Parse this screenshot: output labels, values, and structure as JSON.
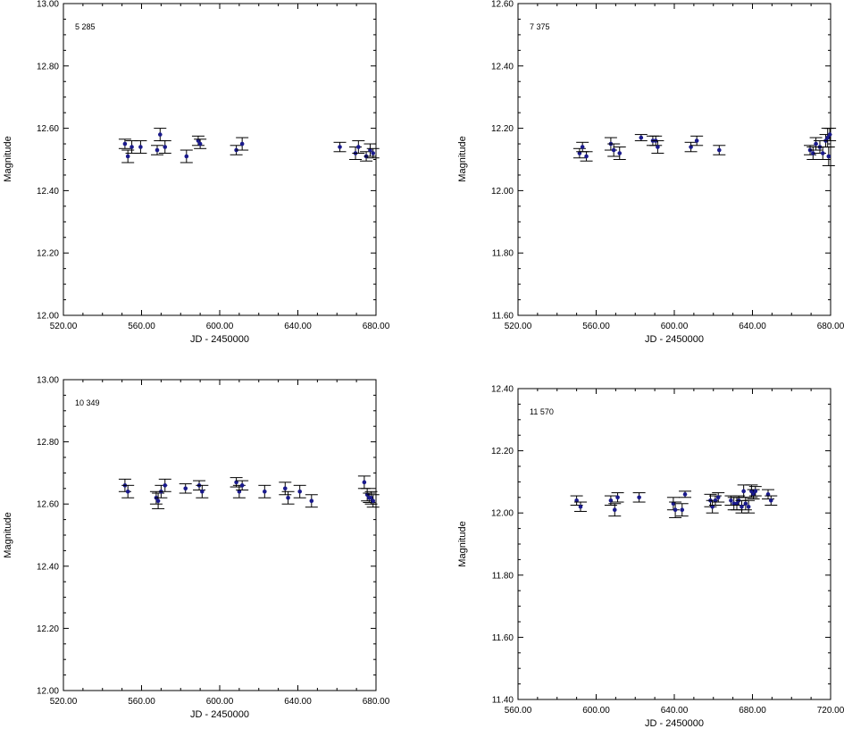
{
  "chart_data": [
    {
      "type": "scatter",
      "label": "5    285",
      "xlabel": "JD - 2450000",
      "ylabel": "Magnitude",
      "xlim": [
        520,
        680
      ],
      "ylim": [
        12.0,
        13.0
      ],
      "xticks": [
        "520.00",
        "560.00",
        "600.00",
        "640.00",
        "680.00"
      ],
      "yticks": [
        "12.00",
        "12.20",
        "12.40",
        "12.60",
        "12.80",
        "13.00"
      ],
      "points": [
        {
          "x": 551.5,
          "y": 12.55,
          "err": 0.015
        },
        {
          "x": 553.0,
          "y": 12.51,
          "err": 0.02
        },
        {
          "x": 555.0,
          "y": 12.54,
          "err": 0.02
        },
        {
          "x": 559.5,
          "y": 12.54,
          "err": 0.02
        },
        {
          "x": 568.0,
          "y": 12.53,
          "err": 0.015
        },
        {
          "x": 569.5,
          "y": 12.58,
          "err": 0.02
        },
        {
          "x": 572.0,
          "y": 12.54,
          "err": 0.02
        },
        {
          "x": 583.0,
          "y": 12.51,
          "err": 0.02
        },
        {
          "x": 589.0,
          "y": 12.56,
          "err": 0.015
        },
        {
          "x": 590.0,
          "y": 12.55,
          "err": 0.015
        },
        {
          "x": 608.5,
          "y": 12.53,
          "err": 0.015
        },
        {
          "x": 611.5,
          "y": 12.55,
          "err": 0.02
        },
        {
          "x": 661.5,
          "y": 12.54,
          "err": 0.015
        },
        {
          "x": 669.5,
          "y": 12.52,
          "err": 0.02
        },
        {
          "x": 671.0,
          "y": 12.54,
          "err": 0.02
        },
        {
          "x": 675.0,
          "y": 12.51,
          "err": 0.015
        },
        {
          "x": 677.0,
          "y": 12.53,
          "err": 0.02
        },
        {
          "x": 678.5,
          "y": 12.52,
          "err": 0.015
        }
      ]
    },
    {
      "type": "scatter",
      "label": "7    375",
      "xlabel": "JD - 2450000",
      "ylabel": "Magnitude",
      "xlim": [
        520,
        680
      ],
      "ylim": [
        11.6,
        12.6
      ],
      "xticks": [
        "520.00",
        "560.00",
        "600.00",
        "640.00",
        "680.00"
      ],
      "yticks": [
        "11.60",
        "11.80",
        "12.00",
        "12.20",
        "12.40",
        "12.60"
      ],
      "points": [
        {
          "x": 551.5,
          "y": 12.12,
          "err": 0.015
        },
        {
          "x": 553.0,
          "y": 12.14,
          "err": 0.015
        },
        {
          "x": 555.0,
          "y": 12.11,
          "err": 0.015
        },
        {
          "x": 567.5,
          "y": 12.15,
          "err": 0.02
        },
        {
          "x": 569.0,
          "y": 12.13,
          "err": 0.02
        },
        {
          "x": 572.0,
          "y": 12.12,
          "err": 0.02
        },
        {
          "x": 583.0,
          "y": 12.17,
          "err": 0.01
        },
        {
          "x": 589.0,
          "y": 12.16,
          "err": 0.015
        },
        {
          "x": 590.5,
          "y": 12.16,
          "err": 0.015
        },
        {
          "x": 591.5,
          "y": 12.14,
          "err": 0.02
        },
        {
          "x": 608.5,
          "y": 12.14,
          "err": 0.015
        },
        {
          "x": 611.5,
          "y": 12.16,
          "err": 0.015
        },
        {
          "x": 623.0,
          "y": 12.13,
          "err": 0.015
        },
        {
          "x": 669.5,
          "y": 12.13,
          "err": 0.015
        },
        {
          "x": 671.0,
          "y": 12.12,
          "err": 0.02
        },
        {
          "x": 672.5,
          "y": 12.15,
          "err": 0.02
        },
        {
          "x": 674.5,
          "y": 12.14,
          "err": 0.02
        },
        {
          "x": 676.0,
          "y": 12.12,
          "err": 0.02
        },
        {
          "x": 677.5,
          "y": 12.16,
          "err": 0.02
        },
        {
          "x": 678.5,
          "y": 12.17,
          "err": 0.03
        },
        {
          "x": 679.0,
          "y": 12.11,
          "err": 0.03
        },
        {
          "x": 679.6,
          "y": 12.18,
          "err": 0.02
        }
      ]
    },
    {
      "type": "scatter",
      "label": "10    349",
      "xlabel": "JD - 2450000",
      "ylabel": "Magnitude",
      "xlim": [
        520,
        680
      ],
      "ylim": [
        12.0,
        13.0
      ],
      "xticks": [
        "520.00",
        "560.00",
        "600.00",
        "640.00",
        "680.00"
      ],
      "yticks": [
        "12.00",
        "12.20",
        "12.40",
        "12.60",
        "12.80",
        "13.00"
      ],
      "points": [
        {
          "x": 551.5,
          "y": 12.66,
          "err": 0.02
        },
        {
          "x": 553.0,
          "y": 12.64,
          "err": 0.02
        },
        {
          "x": 567.5,
          "y": 12.62,
          "err": 0.02
        },
        {
          "x": 568.5,
          "y": 12.61,
          "err": 0.025
        },
        {
          "x": 570.0,
          "y": 12.64,
          "err": 0.02
        },
        {
          "x": 572.0,
          "y": 12.66,
          "err": 0.02
        },
        {
          "x": 582.5,
          "y": 12.65,
          "err": 0.015
        },
        {
          "x": 589.5,
          "y": 12.66,
          "err": 0.015
        },
        {
          "x": 591.0,
          "y": 12.64,
          "err": 0.02
        },
        {
          "x": 608.5,
          "y": 12.67,
          "err": 0.015
        },
        {
          "x": 610.0,
          "y": 12.64,
          "err": 0.02
        },
        {
          "x": 611.5,
          "y": 12.66,
          "err": 0.015
        },
        {
          "x": 623.0,
          "y": 12.64,
          "err": 0.02
        },
        {
          "x": 633.5,
          "y": 12.65,
          "err": 0.02
        },
        {
          "x": 635.0,
          "y": 12.62,
          "err": 0.02
        },
        {
          "x": 641.0,
          "y": 12.64,
          "err": 0.02
        },
        {
          "x": 647.0,
          "y": 12.61,
          "err": 0.02
        },
        {
          "x": 674.0,
          "y": 12.67,
          "err": 0.02
        },
        {
          "x": 675.5,
          "y": 12.63,
          "err": 0.02
        },
        {
          "x": 676.5,
          "y": 12.62,
          "err": 0.015
        },
        {
          "x": 677.5,
          "y": 12.62,
          "err": 0.02
        },
        {
          "x": 678.5,
          "y": 12.61,
          "err": 0.02
        }
      ]
    },
    {
      "type": "scatter",
      "label": "11    570",
      "xlabel": "JD - 2450000",
      "ylabel": "Magnitude",
      "xlim": [
        560,
        720
      ],
      "ylim": [
        11.4,
        12.4
      ],
      "xticks": [
        "560.00",
        "600.00",
        "640.00",
        "680.00",
        "720.00"
      ],
      "yticks": [
        "11.40",
        "11.60",
        "11.80",
        "12.00",
        "12.20",
        "12.40"
      ],
      "points": [
        {
          "x": 590.0,
          "y": 12.04,
          "err": 0.015
        },
        {
          "x": 592.0,
          "y": 12.02,
          "err": 0.015
        },
        {
          "x": 607.5,
          "y": 12.04,
          "err": 0.015
        },
        {
          "x": 609.5,
          "y": 12.01,
          "err": 0.02
        },
        {
          "x": 611.0,
          "y": 12.05,
          "err": 0.015
        },
        {
          "x": 622.0,
          "y": 12.05,
          "err": 0.015
        },
        {
          "x": 639.5,
          "y": 12.03,
          "err": 0.02
        },
        {
          "x": 640.5,
          "y": 12.01,
          "err": 0.025
        },
        {
          "x": 644.0,
          "y": 12.01,
          "err": 0.02
        },
        {
          "x": 645.5,
          "y": 12.06,
          "err": 0.01
        },
        {
          "x": 658.5,
          "y": 12.04,
          "err": 0.02
        },
        {
          "x": 659.5,
          "y": 12.02,
          "err": 0.02
        },
        {
          "x": 661.0,
          "y": 12.04,
          "err": 0.015
        },
        {
          "x": 662.5,
          "y": 12.05,
          "err": 0.015
        },
        {
          "x": 669.0,
          "y": 12.04,
          "err": 0.015
        },
        {
          "x": 670.5,
          "y": 12.03,
          "err": 0.02
        },
        {
          "x": 672.0,
          "y": 12.03,
          "err": 0.02
        },
        {
          "x": 673.0,
          "y": 12.04,
          "err": 0.015
        },
        {
          "x": 674.5,
          "y": 12.02,
          "err": 0.02
        },
        {
          "x": 675.5,
          "y": 12.07,
          "err": 0.02
        },
        {
          "x": 676.5,
          "y": 12.03,
          "err": 0.02
        },
        {
          "x": 678.0,
          "y": 12.02,
          "err": 0.02
        },
        {
          "x": 679.5,
          "y": 12.07,
          "err": 0.02
        },
        {
          "x": 680.5,
          "y": 12.06,
          "err": 0.015
        },
        {
          "x": 681.5,
          "y": 12.07,
          "err": 0.015
        },
        {
          "x": 688.0,
          "y": 12.06,
          "err": 0.015
        },
        {
          "x": 689.5,
          "y": 12.04,
          "err": 0.015
        }
      ]
    }
  ],
  "colors": {
    "point": "#1a1a8c",
    "errorbar": "#000000",
    "axis": "#000000"
  }
}
